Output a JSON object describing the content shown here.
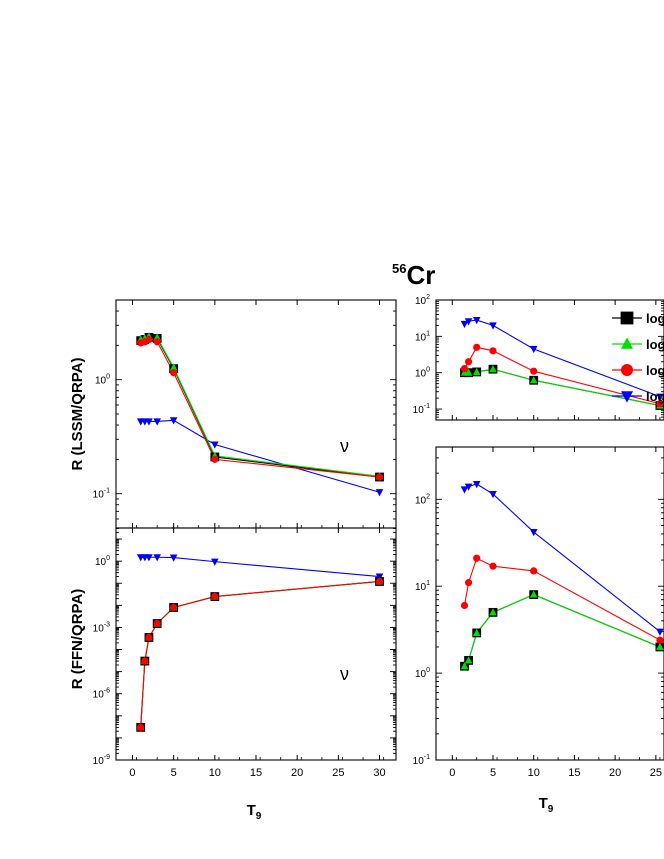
{
  "figure": {
    "title": "56Cr",
    "title_sup": "56",
    "title_main": "Cr",
    "ylabels": [
      "R (LSSM/QRPA)",
      "R (FFN/QRPA)"
    ],
    "xlabel": "T",
    "xlabel_sub": "9",
    "legend_text": [
      "log",
      "log",
      "log",
      "log"
    ],
    "colors": {
      "black": "#000000",
      "green": "#00dd00",
      "red": "#ff0000",
      "blue": "#0000ff"
    }
  },
  "chart_data": [
    {
      "type": "line",
      "panel": "top-left",
      "ylabel": "R (LSSM/QRPA)",
      "yscale": "log",
      "xlim": [
        -2,
        32
      ],
      "ylim": [
        0.05,
        5
      ],
      "xticks": [
        0,
        5,
        10,
        15,
        20,
        25,
        30
      ],
      "yticks": [
        {
          "value": 0.1,
          "base": "10",
          "exp": "-1"
        },
        {
          "value": 1,
          "base": "10",
          "exp": "0"
        }
      ],
      "annotation": "ν",
      "series": [
        {
          "marker": "square",
          "color": "#000000",
          "x": [
            1,
            1.5,
            2,
            3,
            5,
            10,
            30
          ],
          "y": [
            2.2,
            2.25,
            2.35,
            2.3,
            1.25,
            0.21,
            0.14
          ]
        },
        {
          "marker": "triangle-up",
          "color": "#00dd00",
          "x": [
            1,
            1.5,
            2,
            3,
            5,
            10,
            30
          ],
          "y": [
            2.25,
            2.3,
            2.4,
            2.35,
            1.28,
            0.215,
            0.142
          ]
        },
        {
          "marker": "circle",
          "color": "#ff0000",
          "x": [
            1,
            1.5,
            2,
            3,
            5,
            10,
            30
          ],
          "y": [
            2.1,
            2.15,
            2.25,
            2.15,
            1.15,
            0.2,
            0.14
          ]
        },
        {
          "marker": "triangle-down",
          "color": "#0000ff",
          "x": [
            1,
            1.5,
            2,
            3,
            5,
            10,
            30
          ],
          "y": [
            0.43,
            0.43,
            0.43,
            0.43,
            0.44,
            0.27,
            0.103
          ]
        }
      ]
    },
    {
      "type": "line",
      "panel": "bottom-left",
      "ylabel": "R (FFN/QRPA)",
      "yscale": "log",
      "xlim": [
        -2,
        32
      ],
      "ylim": [
        1e-09,
        31.6
      ],
      "xticks": [
        0,
        5,
        10,
        15,
        20,
        25,
        30
      ],
      "yticks": [
        {
          "value": 1e-09,
          "base": "10",
          "exp": "-9"
        },
        {
          "value": 1e-06,
          "base": "10",
          "exp": "-6"
        },
        {
          "value": 0.001,
          "base": "10",
          "exp": "-3"
        },
        {
          "value": 1,
          "base": "10",
          "exp": "0"
        }
      ],
      "annotation": "ν",
      "series": [
        {
          "marker": "square",
          "color": "#000000",
          "x": [
            1,
            1.5,
            2,
            3,
            5,
            10,
            30
          ],
          "y": [
            3e-08,
            3e-05,
            0.00035,
            0.0015,
            0.008,
            0.025,
            0.12
          ]
        },
        {
          "marker": "triangle-up",
          "color": "#00dd00",
          "x": [
            1,
            1.5,
            2,
            3,
            5,
            10,
            30
          ],
          "y": [
            3e-08,
            3e-05,
            0.00035,
            0.0015,
            0.008,
            0.025,
            0.12
          ]
        },
        {
          "marker": "circle",
          "color": "#ff0000",
          "x": [
            1,
            1.5,
            2,
            3,
            5,
            10,
            30
          ],
          "y": [
            3e-08,
            3e-05,
            0.00035,
            0.0015,
            0.008,
            0.025,
            0.12
          ]
        },
        {
          "marker": "triangle-down",
          "color": "#0000ff",
          "x": [
            1,
            1.5,
            2,
            3,
            5,
            10,
            30
          ],
          "y": [
            1.5,
            1.5,
            1.5,
            1.5,
            1.45,
            0.95,
            0.2
          ]
        }
      ]
    },
    {
      "type": "line",
      "panel": "top-right",
      "yscale": "log",
      "xlim": [
        -2,
        26
      ],
      "ylim": [
        0.05,
        100
      ],
      "xticks": [
        0,
        5,
        10,
        15,
        20,
        25
      ],
      "yticks": [
        {
          "value": 0.1,
          "base": "10",
          "exp": "-1"
        },
        {
          "value": 1,
          "base": "10",
          "exp": "0"
        },
        {
          "value": 10,
          "base": "10",
          "exp": "1"
        },
        {
          "value": 100,
          "base": "10",
          "exp": "2"
        }
      ],
      "legend": "top-right",
      "series": [
        {
          "marker": "square",
          "color": "#000000",
          "label": "log",
          "x": [
            1.5,
            2,
            3,
            5,
            10,
            25.5
          ],
          "y": [
            1.0,
            1.0,
            1.05,
            1.25,
            0.62,
            0.125
          ]
        },
        {
          "marker": "triangle-up",
          "color": "#00dd00",
          "label": "log",
          "x": [
            1.5,
            2,
            3,
            5,
            10,
            25.5
          ],
          "y": [
            1.0,
            1.0,
            1.05,
            1.25,
            0.62,
            0.125
          ]
        },
        {
          "marker": "circle",
          "color": "#ff0000",
          "label": "log",
          "x": [
            1.5,
            2,
            3,
            5,
            10,
            25.5
          ],
          "y": [
            1.3,
            2.0,
            5.0,
            4.0,
            1.1,
            0.14
          ]
        },
        {
          "marker": "triangle-down",
          "color": "#0000ff",
          "label": "log",
          "x": [
            1.5,
            2,
            3,
            5,
            10,
            25.5
          ],
          "y": [
            22,
            26,
            28,
            20,
            4.5,
            0.22
          ]
        }
      ]
    },
    {
      "type": "line",
      "panel": "bottom-right",
      "yscale": "log",
      "xlim": [
        -2,
        26
      ],
      "ylim": [
        0.1,
        400
      ],
      "xticks": [
        0,
        5,
        10,
        15,
        20,
        25
      ],
      "yticks": [
        {
          "value": 0.1,
          "base": "10",
          "exp": "-1"
        },
        {
          "value": 1,
          "base": "10",
          "exp": "0"
        },
        {
          "value": 10,
          "base": "10",
          "exp": "1"
        },
        {
          "value": 100,
          "base": "10",
          "exp": "2"
        }
      ],
      "series": [
        {
          "marker": "square",
          "color": "#000000",
          "x": [
            1.5,
            2,
            3,
            5,
            10,
            25.5
          ],
          "y": [
            1.2,
            1.4,
            2.9,
            5.0,
            8.0,
            2.0
          ]
        },
        {
          "marker": "triangle-up",
          "color": "#00dd00",
          "x": [
            1.5,
            2,
            3,
            5,
            10,
            25.5
          ],
          "y": [
            1.2,
            1.4,
            2.9,
            5.0,
            8.0,
            2.0
          ]
        },
        {
          "marker": "circle",
          "color": "#ff0000",
          "x": [
            1.5,
            2,
            3,
            5,
            10,
            25.5
          ],
          "y": [
            6.0,
            11,
            21,
            17,
            15,
            2.4
          ]
        },
        {
          "marker": "triangle-down",
          "color": "#0000ff",
          "x": [
            1.5,
            2,
            3,
            5,
            10,
            25.5
          ],
          "y": [
            130,
            140,
            150,
            115,
            42,
            3.0
          ]
        }
      ]
    }
  ]
}
